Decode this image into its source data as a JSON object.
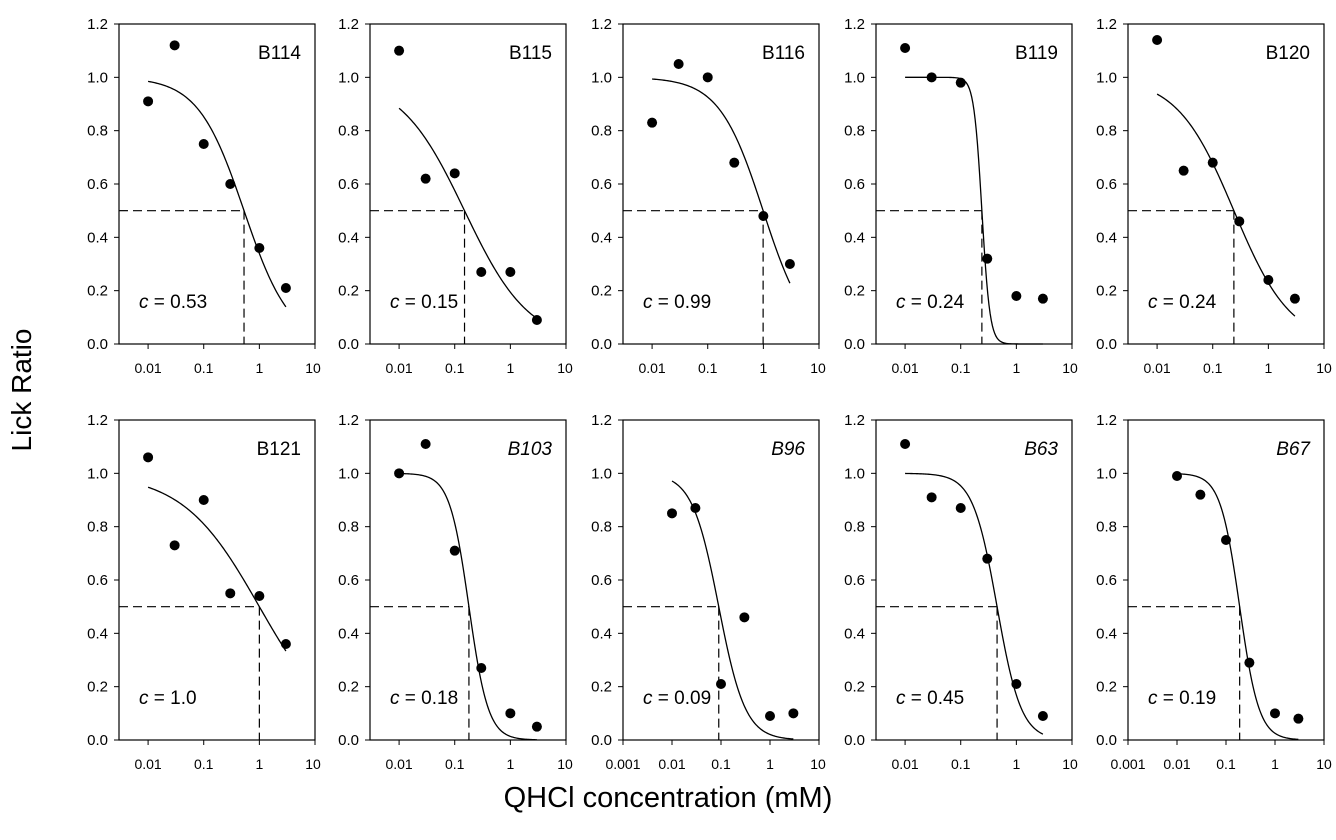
{
  "figure": {
    "ylabel": "Lick Ratio",
    "xlabel": "QHCl concentration (mM)"
  },
  "chart_data": [
    {
      "type": "scatter",
      "label": "B114",
      "italic": false,
      "annotation": "c = 0.53",
      "c": 0.53,
      "x": [
        0.01,
        0.03,
        0.1,
        0.3,
        1,
        3
      ],
      "y": [
        0.91,
        1.12,
        0.75,
        0.6,
        0.36,
        0.21
      ],
      "fit_x_range": [
        0.01,
        3
      ],
      "fit_slope": 1.05,
      "fit_top": 1.0,
      "xlim": [
        0.003,
        10
      ],
      "xticks": [
        "0.01",
        "0.1",
        "1",
        "10"
      ],
      "ylim": [
        0,
        1.2
      ],
      "yticks": [
        "0.0",
        "0.2",
        "0.4",
        "0.6",
        "0.8",
        "1.0",
        "1.2"
      ]
    },
    {
      "type": "scatter",
      "label": "B115",
      "italic": false,
      "annotation": "c = 0.15",
      "c": 0.15,
      "x": [
        0.01,
        0.03,
        0.1,
        0.3,
        1,
        3
      ],
      "y": [
        1.1,
        0.62,
        0.64,
        0.27,
        0.27,
        0.09
      ],
      "fit_x_range": [
        0.01,
        3
      ],
      "fit_slope": 0.75,
      "fit_top": 1.0,
      "xlim": [
        0.003,
        10
      ],
      "xticks": [
        "0.01",
        "0.1",
        "1",
        "10"
      ],
      "ylim": [
        0,
        1.2
      ],
      "yticks": [
        "0.0",
        "0.2",
        "0.4",
        "0.6",
        "0.8",
        "1.0",
        "1.2"
      ]
    },
    {
      "type": "scatter",
      "label": "B116",
      "italic": false,
      "annotation": "c = 0.99",
      "c": 0.99,
      "x": [
        0.01,
        0.03,
        0.1,
        0.3,
        1,
        3
      ],
      "y": [
        0.83,
        1.05,
        1.0,
        0.68,
        0.48,
        0.3
      ],
      "fit_x_range": [
        0.01,
        3
      ],
      "fit_slope": 1.1,
      "fit_top": 1.0,
      "xlim": [
        0.003,
        10
      ],
      "xticks": [
        "0.01",
        "0.1",
        "1",
        "10"
      ],
      "ylim": [
        0,
        1.2
      ],
      "yticks": [
        "0.0",
        "0.2",
        "0.4",
        "0.6",
        "0.8",
        "1.0",
        "1.2"
      ]
    },
    {
      "type": "scatter",
      "label": "B119",
      "italic": false,
      "annotation": "c = 0.24",
      "c": 0.24,
      "x": [
        0.01,
        0.03,
        0.1,
        0.3,
        1,
        3
      ],
      "y": [
        1.11,
        1.0,
        0.98,
        0.32,
        0.18,
        0.17
      ],
      "fit_x_range": [
        0.01,
        3
      ],
      "fit_slope": 6.0,
      "fit_top": 1.0,
      "xlim": [
        0.003,
        10
      ],
      "xticks": [
        "0.01",
        "0.1",
        "1",
        "10"
      ],
      "ylim": [
        0,
        1.2
      ],
      "yticks": [
        "0.0",
        "0.2",
        "0.4",
        "0.6",
        "0.8",
        "1.0",
        "1.2"
      ]
    },
    {
      "type": "scatter",
      "label": "B120",
      "italic": false,
      "annotation": "c = 0.24",
      "c": 0.24,
      "x": [
        0.01,
        0.03,
        0.1,
        0.3,
        1,
        3
      ],
      "y": [
        1.14,
        0.65,
        0.68,
        0.46,
        0.24,
        0.17
      ],
      "fit_x_range": [
        0.01,
        3
      ],
      "fit_slope": 0.85,
      "fit_top": 1.0,
      "xlim": [
        0.003,
        10
      ],
      "xticks": [
        "0.01",
        "0.1",
        "1",
        "10"
      ],
      "ylim": [
        0,
        1.2
      ],
      "yticks": [
        "0.0",
        "0.2",
        "0.4",
        "0.6",
        "0.8",
        "1.0",
        "1.2"
      ]
    },
    {
      "type": "scatter",
      "label": "B121",
      "italic": false,
      "annotation": "c = 1.0",
      "c": 1.0,
      "x": [
        0.01,
        0.03,
        0.1,
        0.3,
        1,
        3
      ],
      "y": [
        1.06,
        0.73,
        0.9,
        0.55,
        0.54,
        0.36
      ],
      "fit_x_range": [
        0.01,
        3
      ],
      "fit_slope": 0.63,
      "fit_top": 1.0,
      "xlim": [
        0.003,
        10
      ],
      "xticks": [
        "0.01",
        "0.1",
        "1",
        "10"
      ],
      "ylim": [
        0,
        1.2
      ],
      "yticks": [
        "0.0",
        "0.2",
        "0.4",
        "0.6",
        "0.8",
        "1.0",
        "1.2"
      ]
    },
    {
      "type": "scatter",
      "label": "B103",
      "italic": true,
      "annotation": "c = 0.18",
      "c": 0.18,
      "x": [
        0.01,
        0.03,
        0.1,
        0.3,
        1,
        3
      ],
      "y": [
        1.0,
        1.11,
        0.71,
        0.27,
        0.1,
        0.05
      ],
      "fit_x_range": [
        0.01,
        3
      ],
      "fit_slope": 2.5,
      "fit_top": 1.0,
      "xlim": [
        0.003,
        10
      ],
      "xticks": [
        "0.01",
        "0.1",
        "1",
        "10"
      ],
      "ylim": [
        0,
        1.2
      ],
      "yticks": [
        "0.0",
        "0.2",
        "0.4",
        "0.6",
        "0.8",
        "1.0",
        "1.2"
      ]
    },
    {
      "type": "scatter",
      "label": "B96",
      "italic": true,
      "annotation": "c = 0.09",
      "c": 0.09,
      "x": [
        0.01,
        0.03,
        0.1,
        0.3,
        1,
        3
      ],
      "y": [
        0.85,
        0.87,
        0.21,
        0.46,
        0.09,
        0.1
      ],
      "fit_x_range": [
        0.01,
        3
      ],
      "fit_slope": 1.6,
      "fit_top": 1.0,
      "xlim": [
        0.001,
        10
      ],
      "xticks": [
        "0.001",
        "0.01",
        "0.1",
        "1",
        "10"
      ],
      "ylim": [
        0,
        1.2
      ],
      "yticks": [
        "0.0",
        "0.2",
        "0.4",
        "0.6",
        "0.8",
        "1.0",
        "1.2"
      ]
    },
    {
      "type": "scatter",
      "label": "B63",
      "italic": true,
      "annotation": "c = 0.45",
      "c": 0.45,
      "x": [
        0.01,
        0.03,
        0.1,
        0.3,
        1,
        3
      ],
      "y": [
        1.11,
        0.91,
        0.87,
        0.68,
        0.21,
        0.09
      ],
      "fit_x_range": [
        0.01,
        3
      ],
      "fit_slope": 2.0,
      "fit_top": 1.0,
      "xlim": [
        0.003,
        10
      ],
      "xticks": [
        "0.01",
        "0.1",
        "1",
        "10"
      ],
      "ylim": [
        0,
        1.2
      ],
      "yticks": [
        "0.0",
        "0.2",
        "0.4",
        "0.6",
        "0.8",
        "1.0",
        "1.2"
      ]
    },
    {
      "type": "scatter",
      "label": "B67",
      "italic": true,
      "annotation": "c = 0.19",
      "c": 0.19,
      "x": [
        0.01,
        0.03,
        0.1,
        0.3,
        1,
        3
      ],
      "y": [
        0.99,
        0.92,
        0.75,
        0.29,
        0.1,
        0.08
      ],
      "fit_x_range": [
        0.01,
        3
      ],
      "fit_slope": 2.2,
      "fit_top": 1.0,
      "xlim": [
        0.001,
        10
      ],
      "xticks": [
        "0.001",
        "0.01",
        "0.1",
        "1",
        "10"
      ],
      "ylim": [
        0,
        1.2
      ],
      "yticks": [
        "0.0",
        "0.2",
        "0.4",
        "0.6",
        "0.8",
        "1.0",
        "1.2"
      ]
    }
  ]
}
